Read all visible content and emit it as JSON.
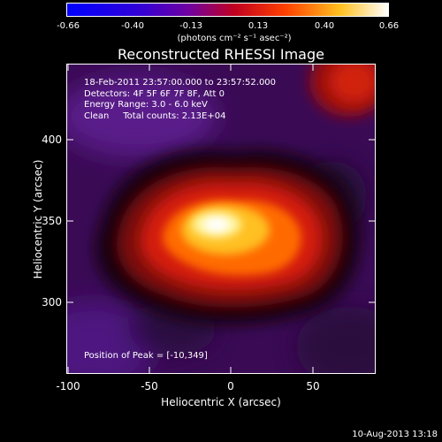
{
  "colorbar": {
    "ticks": [
      "-0.66",
      "-0.40",
      "-0.13",
      "0.13",
      "0.40",
      "0.66"
    ],
    "units": "(photons cm⁻² s⁻¹ asec⁻²)",
    "colors": [
      "#0000ff",
      "#4000d0",
      "#800090",
      "#c00000",
      "#ff6000",
      "#ffff80",
      "#ffffff"
    ]
  },
  "title": "Reconstructed RHESSI Image",
  "info": {
    "time": "18-Feb-2011 23:57:00.000 to 23:57:52.000",
    "detectors": "Detectors: 4F 5F 6F 7F 8F, Att 0",
    "energy": "Energy Range: 3.0 - 6.0 keV",
    "clean": "Clean     Total counts: 2.13E+04"
  },
  "peak": "Position of Peak = [-10,349]",
  "axes": {
    "x_ticks": [
      "-100",
      "-50",
      "0",
      "50"
    ],
    "y_ticks": [
      "400",
      "350",
      "300"
    ],
    "xlabel": "Heliocentric X (arcsec)",
    "ylabel": "Heliocentric Y (arcsec)"
  },
  "datestamp": "10-Aug-2013 13:18"
}
